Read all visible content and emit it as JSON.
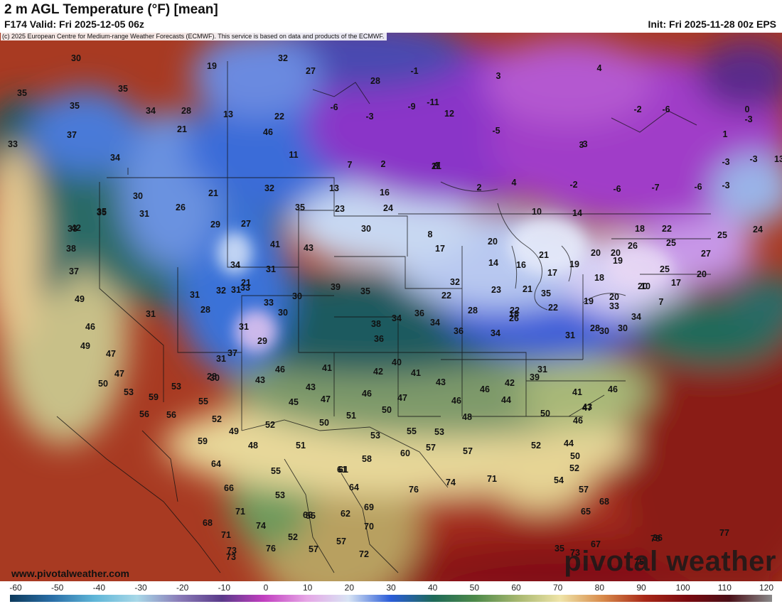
{
  "header": {
    "title": "2 m AGL Temperature (°F) [mean]",
    "valid": "F174 Valid: Fri 2025-12-05 06z",
    "init": "Init: Fri 2025-11-28 00z EPS"
  },
  "map": {
    "copyright": "(c) 2025 European Centre for Medium-range Weather Forecasts (ECMWF). This service is based on data and products of the ECMWF.",
    "temperature_labels": [
      "30",
      "19",
      "35",
      "35",
      "35",
      "34",
      "28",
      "13",
      "22",
      "46",
      "33",
      "37",
      "34",
      "21",
      "11",
      "7",
      "2",
      "21",
      "13",
      "16",
      "24",
      "23",
      "30",
      "35",
      "29",
      "35",
      "30",
      "31",
      "26",
      "21",
      "32",
      "27",
      "33",
      "41",
      "43",
      "35",
      "42",
      "38",
      "37",
      "49",
      "46",
      "49",
      "47",
      "50",
      "53",
      "59",
      "56",
      "56",
      "47",
      "53",
      "55",
      "52",
      "49",
      "59",
      "64",
      "66",
      "71",
      "68",
      "71",
      "73",
      "74",
      "76",
      "73",
      "52",
      "57",
      "57",
      "55",
      "61",
      "66",
      "62",
      "70",
      "72",
      "69",
      "64",
      "61",
      "55",
      "53",
      "48",
      "51",
      "52",
      "50",
      "51",
      "53",
      "55",
      "53",
      "45",
      "47",
      "46",
      "43",
      "41",
      "42",
      "40",
      "41",
      "43",
      "47",
      "50",
      "58",
      "60",
      "57",
      "57",
      "76",
      "74",
      "71",
      "46",
      "48",
      "44",
      "46",
      "42",
      "39",
      "41",
      "44",
      "52",
      "50",
      "47",
      "46",
      "43",
      "46",
      "50",
      "52",
      "54",
      "57",
      "65",
      "68",
      "67",
      "73",
      "75",
      "78",
      "77",
      "36",
      "35",
      "31",
      "38",
      "39",
      "36",
      "34",
      "36",
      "34",
      "36",
      "34",
      "35",
      "33",
      "32",
      "31",
      "31",
      "28",
      "31",
      "37",
      "43",
      "46",
      "30",
      "28",
      "31",
      "31",
      "34",
      "30",
      "31",
      "21",
      "29",
      "30",
      "33",
      "32",
      "27",
      "28",
      "-1",
      "3",
      "-11",
      "12",
      "-5",
      "-6",
      "-3",
      "-9",
      "-7",
      "3",
      "4",
      "-2",
      "-6",
      "0",
      "1",
      "-3",
      "-3",
      "-3",
      "-6",
      "-7",
      "-6",
      "-2",
      "-3",
      "-3",
      "13",
      "8",
      "2",
      "4",
      "10",
      "14",
      "8",
      "17",
      "20",
      "14",
      "16",
      "21",
      "17",
      "20",
      "19",
      "18",
      "19",
      "26",
      "20",
      "18",
      "22",
      "25",
      "25",
      "27",
      "25",
      "24",
      "20",
      "17",
      "7",
      "10",
      "20",
      "20",
      "19",
      "28",
      "22",
      "22",
      "21",
      "23",
      "26",
      "31",
      "28",
      "30",
      "30",
      "34",
      "33",
      "35",
      "32",
      "22",
      "18",
      "22",
      "30",
      "27"
    ],
    "watermark_site": "www.pivotalweather.com",
    "watermark_brand": "pivotal weather"
  },
  "scale": {
    "ticks": [
      "-60",
      "-50",
      "-40",
      "-30",
      "-20",
      "-10",
      "0",
      "10",
      "20",
      "30",
      "40",
      "50",
      "60",
      "70",
      "80",
      "90",
      "100",
      "110",
      "120"
    ],
    "colors": [
      "#0d3a5c",
      "#2a6fa8",
      "#5fb6d8",
      "#a8d8e8",
      "#8a7cb8",
      "#5a3a8a",
      "#c23fc0",
      "#e6a6e6",
      "#d8e4f4",
      "#2a5cd8",
      "#1e6a58",
      "#4e8a4a",
      "#a8b870",
      "#efe4a8",
      "#d88a4a",
      "#a82818",
      "#7a0a10",
      "#4a1018",
      "#8a8a8a"
    ]
  }
}
